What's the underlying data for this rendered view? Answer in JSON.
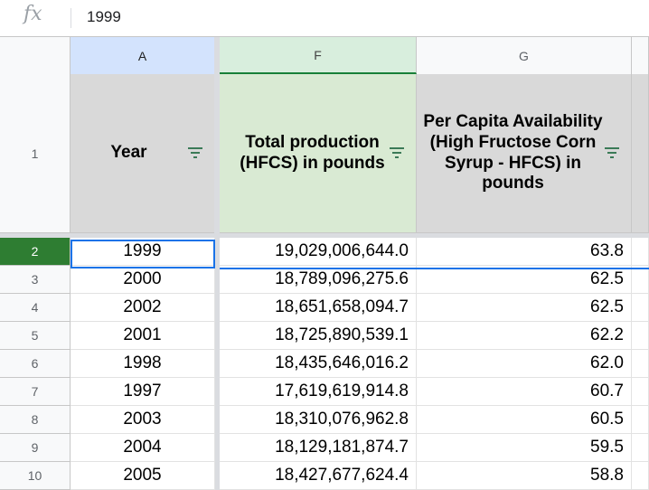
{
  "formula_bar": {
    "fx_icon": "fx",
    "value": "1999"
  },
  "columns": [
    {
      "letter": "A",
      "header": "Year"
    },
    {
      "letter": "F",
      "header": "Total production (HFCS) in pounds"
    },
    {
      "letter": "G",
      "header": "Per Capita Availability (High Fructose Corn Syrup - HFCS) in pounds"
    }
  ],
  "header_row_number": "1",
  "rows": [
    {
      "num": "2",
      "year": "1999",
      "total": "19,029,006,644.0",
      "per_capita": "63.8"
    },
    {
      "num": "3",
      "year": "2000",
      "total": "18,789,096,275.6",
      "per_capita": "62.5"
    },
    {
      "num": "4",
      "year": "2002",
      "total": "18,651,658,094.7",
      "per_capita": "62.5"
    },
    {
      "num": "5",
      "year": "2001",
      "total": "18,725,890,539.1",
      "per_capita": "62.2"
    },
    {
      "num": "6",
      "year": "1998",
      "total": "18,435,646,016.2",
      "per_capita": "62.0"
    },
    {
      "num": "7",
      "year": "1997",
      "total": "17,619,619,914.8",
      "per_capita": "60.7"
    },
    {
      "num": "8",
      "year": "2003",
      "total": "18,310,076,962.8",
      "per_capita": "60.5"
    },
    {
      "num": "9",
      "year": "2004",
      "total": "18,129,181,874.7",
      "per_capita": "59.5"
    },
    {
      "num": "10",
      "year": "2005",
      "total": "18,427,677,624.4",
      "per_capita": "58.8"
    }
  ],
  "icons": {
    "filter": "filter-icon"
  },
  "colors": {
    "active_row": "#2e7d32",
    "selection": "#1a73e8",
    "header_gray": "#d9d9d9",
    "header_green": "#d9ead3"
  }
}
